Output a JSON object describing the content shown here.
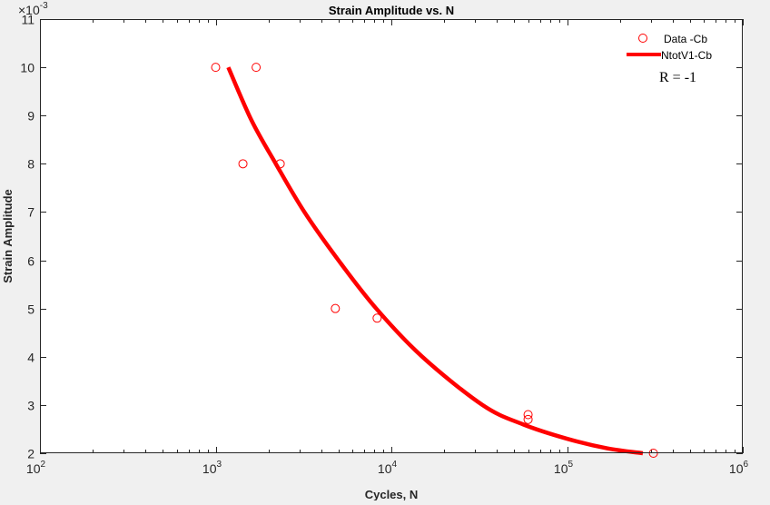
{
  "chart_data": {
    "type": "scatter",
    "title": "Strain Amplitude vs. N",
    "xlabel": "Cycles, N",
    "ylabel": "Strain Amplitude",
    "xscale": "log",
    "xlim": [
      100,
      1000000
    ],
    "ylim": [
      0.002,
      0.011
    ],
    "y_multiplier_label": "×10",
    "y_multiplier_exponent": "-3",
    "x_ticks": [
      {
        "base": "10",
        "exp": "2",
        "value": 100
      },
      {
        "base": "10",
        "exp": "3",
        "value": 1000
      },
      {
        "base": "10",
        "exp": "4",
        "value": 10000
      },
      {
        "base": "10",
        "exp": "5",
        "value": 100000
      },
      {
        "base": "10",
        "exp": "6",
        "value": 1000000
      }
    ],
    "y_ticks": [
      {
        "label": "2",
        "value": 0.002
      },
      {
        "label": "3",
        "value": 0.003
      },
      {
        "label": "4",
        "value": 0.004
      },
      {
        "label": "5",
        "value": 0.005
      },
      {
        "label": "6",
        "value": 0.006
      },
      {
        "label": "7",
        "value": 0.007
      },
      {
        "label": "8",
        "value": 0.008
      },
      {
        "label": "9",
        "value": 0.009
      },
      {
        "label": "10",
        "value": 0.01
      },
      {
        "label": "11",
        "value": 0.011
      }
    ],
    "grid": false,
    "legend_position": "top-right",
    "series": [
      {
        "name": "Data -Cb",
        "kind": "markers",
        "marker": "circle",
        "color": "#ff0000",
        "points": [
          {
            "x": 1000,
            "y": 0.01
          },
          {
            "x": 1700,
            "y": 0.01
          },
          {
            "x": 1430,
            "y": 0.008
          },
          {
            "x": 2330,
            "y": 0.008
          },
          {
            "x": 4800,
            "y": 0.005
          },
          {
            "x": 8300,
            "y": 0.0048
          },
          {
            "x": 60000,
            "y": 0.0028
          },
          {
            "x": 60000,
            "y": 0.0027
          },
          {
            "x": 310000,
            "y": 0.002
          }
        ]
      },
      {
        "name": "NtotV1-Cb",
        "kind": "line",
        "color": "#ff0000",
        "points": [
          {
            "x": 1180,
            "y": 0.01
          },
          {
            "x": 1600,
            "y": 0.0089
          },
          {
            "x": 2200,
            "y": 0.008
          },
          {
            "x": 3200,
            "y": 0.007
          },
          {
            "x": 5000,
            "y": 0.006
          },
          {
            "x": 8200,
            "y": 0.005
          },
          {
            "x": 15000,
            "y": 0.004
          },
          {
            "x": 33000,
            "y": 0.003
          },
          {
            "x": 56000,
            "y": 0.0026
          },
          {
            "x": 100000,
            "y": 0.0023
          },
          {
            "x": 170000,
            "y": 0.0021
          },
          {
            "x": 270000,
            "y": 0.002
          }
        ]
      }
    ],
    "annotations": [
      {
        "text": "R = -1"
      }
    ]
  }
}
